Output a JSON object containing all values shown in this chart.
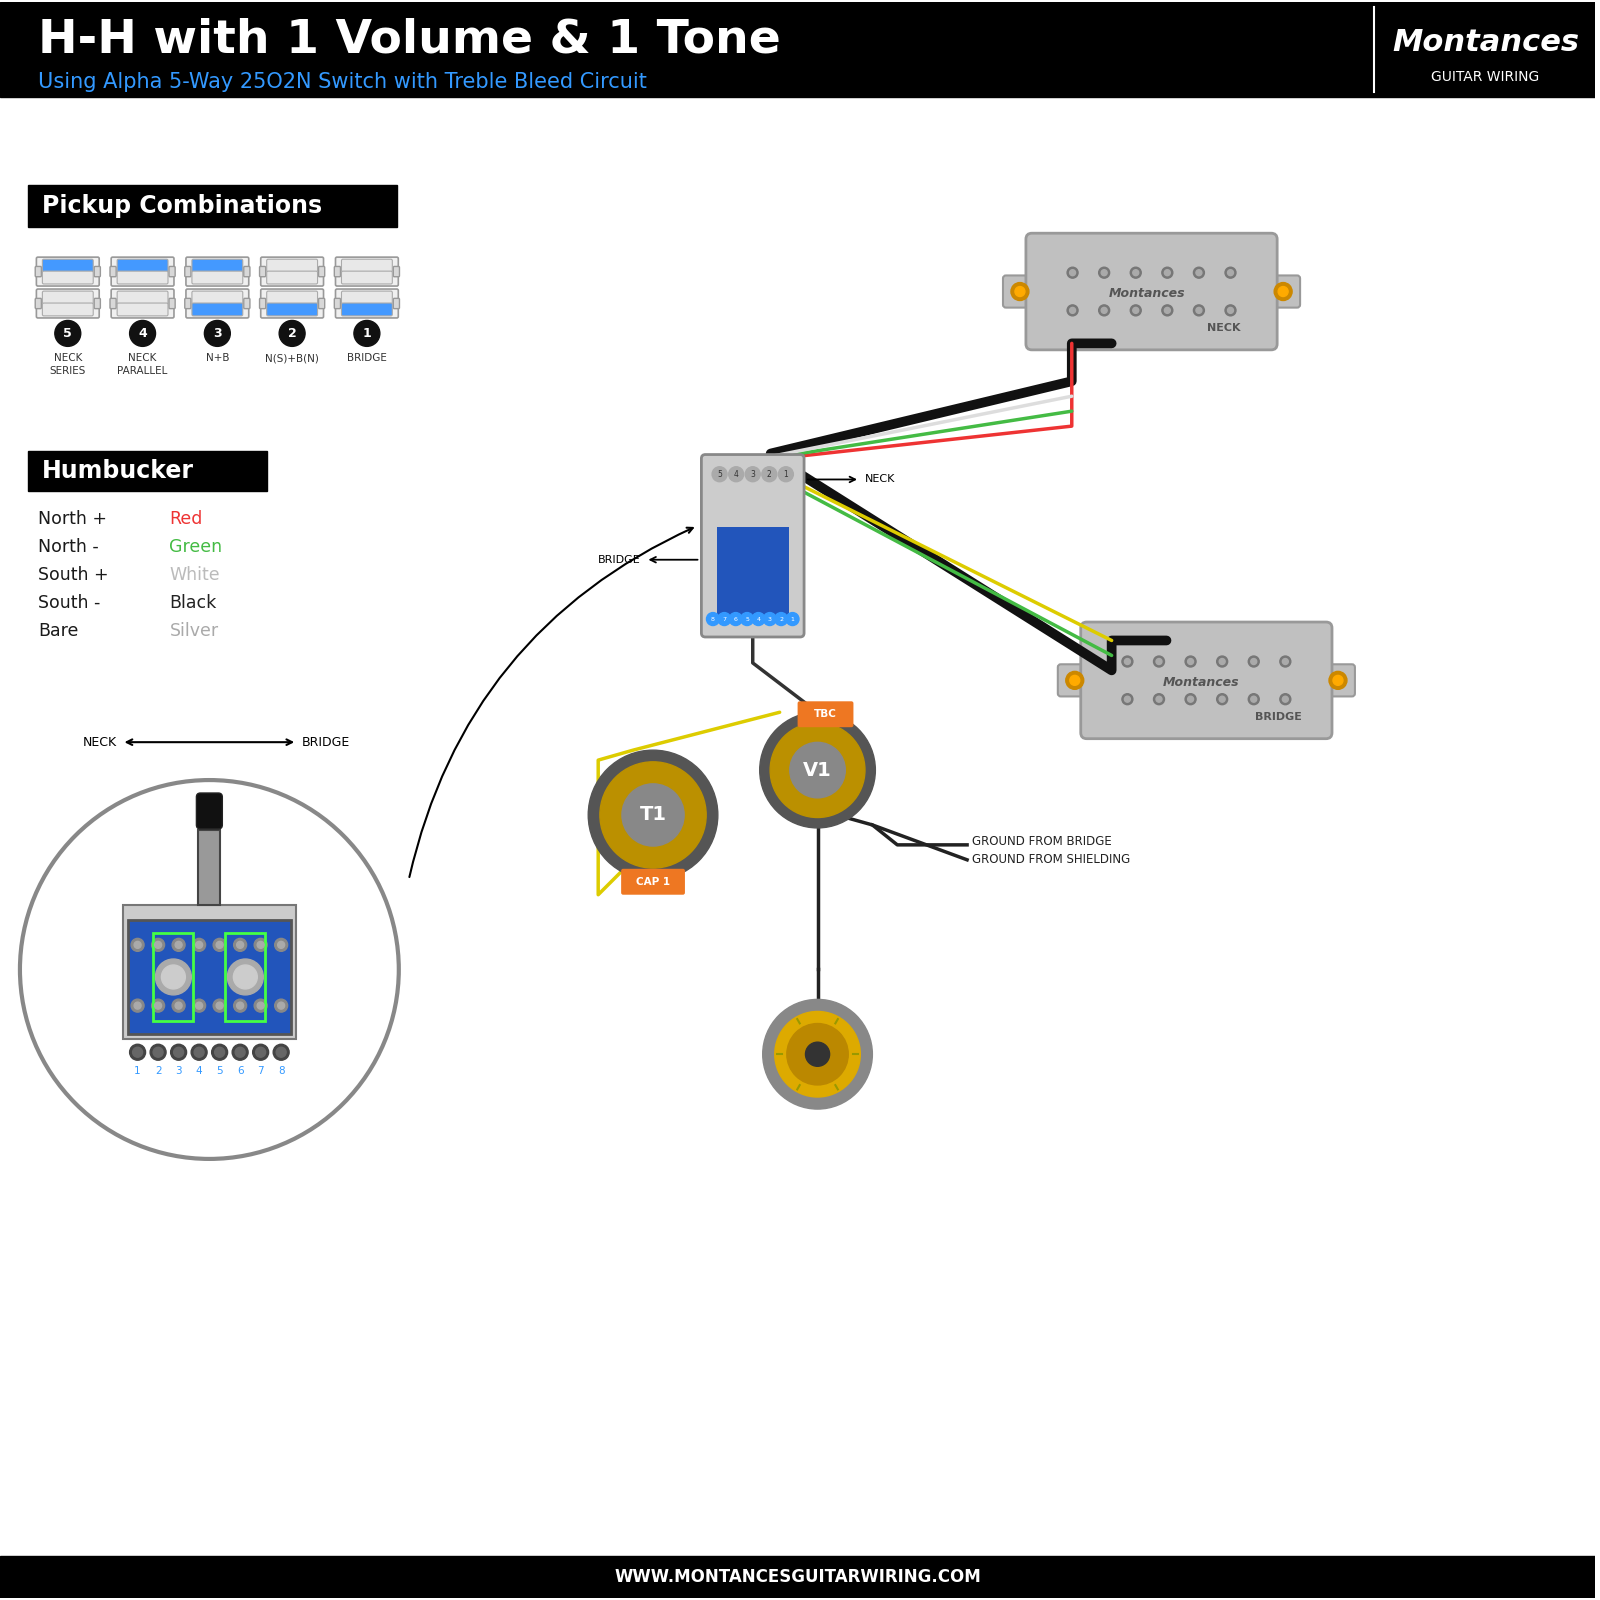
{
  "title": "H-H with 1 Volume & 1 Tone",
  "subtitle": "Using Alpha 5-Way 25O2N Switch with Treble Bleed Circuit",
  "bg_color": "#ffffff",
  "header_bg": "#000000",
  "title_color": "#ffffff",
  "subtitle_color": "#3399ff",
  "pickup_section_title": "Pickup Combinations",
  "humbucker_section_title": "Humbucker",
  "wire_labels": [
    "North +",
    "North -",
    "South +",
    "South -",
    "Bare"
  ],
  "wire_colors_text": [
    "Red",
    "Green",
    "White",
    "Black",
    "Silver"
  ],
  "wire_colors_hex": [
    "#ee3333",
    "#44bb44",
    "#bbbbbb",
    "#222222",
    "#aaaaaa"
  ],
  "pickup_combos": [
    {
      "number": 5,
      "label": "NECK\nSERIES",
      "top_blue": true,
      "bottom_blue": false
    },
    {
      "number": 4,
      "label": "NECK\nPARALLEL",
      "top_blue": true,
      "bottom_blue": false
    },
    {
      "number": 3,
      "label": "N+B",
      "top_blue": true,
      "bottom_blue": true
    },
    {
      "number": 2,
      "label": "N(S)+B(N)",
      "top_blue": false,
      "bottom_blue": true
    },
    {
      "number": 1,
      "label": "BRIDGE",
      "top_blue": false,
      "bottom_blue": true
    }
  ],
  "footer_text": "WWW.MONTANCESGUITARWIRING.COM",
  "footer_bg": "#000000",
  "footer_color": "#ffffff",
  "brand_name": "Montances",
  "brand_sub": "GUITAR WIRING",
  "wire_red": "#ee3333",
  "wire_green": "#44bb44",
  "wire_white": "#dddddd",
  "wire_black": "#222222",
  "wire_yellow": "#ddcc00",
  "pickup_fill": "#c0c0c0",
  "pickup_edge": "#999999",
  "screw_color": "#cc8800",
  "screw_inner": "#ffaa00",
  "blue_switch": "#2255bb",
  "knob_outer": "#555555",
  "knob_mid": "#bb9000",
  "knob_inner": "#888888",
  "orange_label": "#ee7722",
  "detail_circle_border": "#888888",
  "term_blue": "#3399ff"
}
